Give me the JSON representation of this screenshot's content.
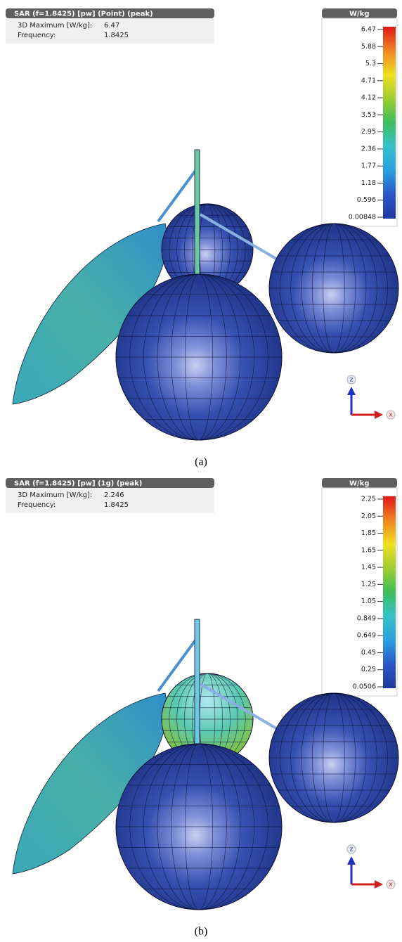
{
  "panels": [
    {
      "header": "SAR (f=1.8425) [pw] (Point) (peak)",
      "info": [
        [
          "3D Maximum [W/kg]:",
          "6.47"
        ],
        [
          "Frequency:",
          "1.8425"
        ]
      ],
      "legend": {
        "unit": "W/kg",
        "ticks": [
          "6.47",
          "5.88",
          "5.3",
          "4.71",
          "4.12",
          "3.53",
          "2.95",
          "2.36",
          "1.77",
          "1.18",
          "0.596",
          "0.00848"
        ]
      },
      "axes": {
        "z": "z",
        "x": "x"
      },
      "caption": "(a)"
    },
    {
      "header": "SAR (f=1.8425) [pw] (1g) (peak)",
      "info": [
        [
          "3D Maximum [W/kg]:",
          "2.246"
        ],
        [
          "Frequency:",
          "1.8425"
        ]
      ],
      "legend": {
        "unit": "W/kg",
        "ticks": [
          "2.25",
          "2.05",
          "1.85",
          "1.65",
          "1.45",
          "1.25",
          "1.05",
          "0.849",
          "0.649",
          "0.45",
          "0.25",
          "0.0506"
        ]
      },
      "axes": {
        "z": "z",
        "x": "x"
      },
      "caption": "(b)"
    }
  ]
}
